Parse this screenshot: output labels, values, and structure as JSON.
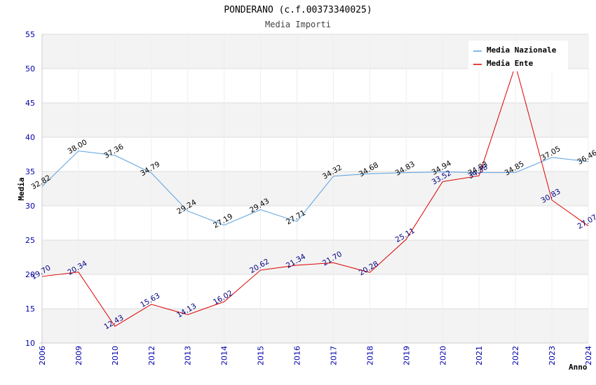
{
  "chart_data": {
    "type": "line",
    "title": "PONDERANO (c.f.00373340025)",
    "subtitle": "Media Importi",
    "xlabel": "Anno",
    "ylabel": "Media",
    "ylim": [
      10,
      55
    ],
    "yticks": [
      10,
      15,
      20,
      25,
      30,
      35,
      40,
      45,
      50,
      55
    ],
    "grid": "horizontal alternating bands",
    "legend_position": "top-right",
    "categories": [
      "2006",
      "2009",
      "2010",
      "2012",
      "2013",
      "2014",
      "2015",
      "2016",
      "2017",
      "2018",
      "2019",
      "2020",
      "2021",
      "2022",
      "2023",
      "2024"
    ],
    "series": [
      {
        "name": "Media Nazionale",
        "color": "#5aa0e0",
        "label_color": "#000000",
        "values": [
          32.82,
          38.0,
          37.36,
          34.79,
          29.24,
          27.19,
          29.43,
          27.71,
          34.32,
          34.68,
          34.83,
          34.94,
          34.83,
          34.85,
          37.05,
          36.46
        ],
        "labels": [
          "32.82",
          "38.00",
          "37.36",
          "34.79",
          "29.24",
          "27.19",
          "29.43",
          "27.71",
          "34.32",
          "34.68",
          "34.83",
          "34.94",
          "34.83",
          "34.85",
          "37.05",
          "36.46"
        ]
      },
      {
        "name": "Media Ente",
        "color": "#dd0000",
        "label_color": "#000080",
        "values": [
          19.7,
          20.34,
          12.43,
          15.63,
          14.13,
          16.02,
          20.62,
          21.34,
          21.7,
          20.28,
          25.11,
          33.52,
          34.38,
          50.5,
          30.83,
          27.07
        ],
        "labels": [
          "19.70",
          "20.34",
          "12.43",
          "15.63",
          "14.13",
          "16.02",
          "20.62",
          "21.34",
          "21.70",
          "20.28",
          "25.11",
          "33.52",
          "34.38",
          "",
          "30.83",
          "27.07"
        ]
      }
    ]
  }
}
